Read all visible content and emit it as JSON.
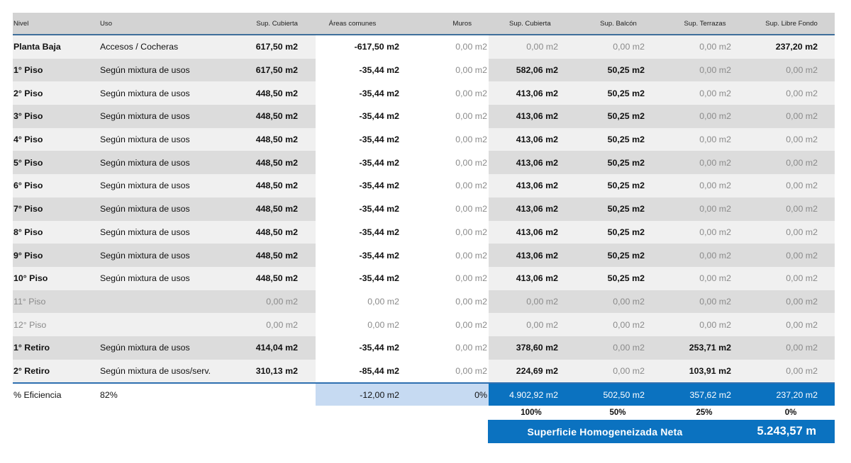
{
  "headers": [
    "Nivel",
    "Uso",
    "Sup. Cubierta",
    "Áreas comunes",
    "Muros",
    "Sup. Cubierta",
    "Sup. Balcón",
    "Sup. Terrazas",
    "Sup. Libre Fondo"
  ],
  "rows": [
    {
      "nivel": "Planta Baja",
      "uso": "Accesos / Cocheras",
      "sup_cubierta": "617,50 m2",
      "areas_comunes": "-617,50 m2",
      "muros": "0,00 m2",
      "sup_cubierta_h": "0,00 m2",
      "balcon": "0,00 m2",
      "terrazas": "0,00 m2",
      "libre_fondo": "237,20 m2"
    },
    {
      "nivel": "1° Piso",
      "uso": "Según mixtura de usos",
      "sup_cubierta": "617,50 m2",
      "areas_comunes": "-35,44 m2",
      "muros": "0,00 m2",
      "sup_cubierta_h": "582,06 m2",
      "balcon": "50,25 m2",
      "terrazas": "0,00 m2",
      "libre_fondo": "0,00 m2"
    },
    {
      "nivel": "2° Piso",
      "uso": "Según mixtura de usos",
      "sup_cubierta": "448,50 m2",
      "areas_comunes": "-35,44 m2",
      "muros": "0,00 m2",
      "sup_cubierta_h": "413,06 m2",
      "balcon": "50,25 m2",
      "terrazas": "0,00 m2",
      "libre_fondo": "0,00 m2"
    },
    {
      "nivel": "3° Piso",
      "uso": "Según mixtura de usos",
      "sup_cubierta": "448,50 m2",
      "areas_comunes": "-35,44 m2",
      "muros": "0,00 m2",
      "sup_cubierta_h": "413,06 m2",
      "balcon": "50,25 m2",
      "terrazas": "0,00 m2",
      "libre_fondo": "0,00 m2"
    },
    {
      "nivel": "4° Piso",
      "uso": "Según mixtura de usos",
      "sup_cubierta": "448,50 m2",
      "areas_comunes": "-35,44 m2",
      "muros": "0,00 m2",
      "sup_cubierta_h": "413,06 m2",
      "balcon": "50,25 m2",
      "terrazas": "0,00 m2",
      "libre_fondo": "0,00 m2"
    },
    {
      "nivel": "5° Piso",
      "uso": "Según mixtura de usos",
      "sup_cubierta": "448,50 m2",
      "areas_comunes": "-35,44 m2",
      "muros": "0,00 m2",
      "sup_cubierta_h": "413,06 m2",
      "balcon": "50,25 m2",
      "terrazas": "0,00 m2",
      "libre_fondo": "0,00 m2"
    },
    {
      "nivel": "6° Piso",
      "uso": "Según mixtura de usos",
      "sup_cubierta": "448,50 m2",
      "areas_comunes": "-35,44 m2",
      "muros": "0,00 m2",
      "sup_cubierta_h": "413,06 m2",
      "balcon": "50,25 m2",
      "terrazas": "0,00 m2",
      "libre_fondo": "0,00 m2"
    },
    {
      "nivel": "7° Piso",
      "uso": "Según mixtura de usos",
      "sup_cubierta": "448,50 m2",
      "areas_comunes": "-35,44 m2",
      "muros": "0,00 m2",
      "sup_cubierta_h": "413,06 m2",
      "balcon": "50,25 m2",
      "terrazas": "0,00 m2",
      "libre_fondo": "0,00 m2"
    },
    {
      "nivel": "8° Piso",
      "uso": "Según mixtura de usos",
      "sup_cubierta": "448,50 m2",
      "areas_comunes": "-35,44 m2",
      "muros": "0,00 m2",
      "sup_cubierta_h": "413,06 m2",
      "balcon": "50,25 m2",
      "terrazas": "0,00 m2",
      "libre_fondo": "0,00 m2"
    },
    {
      "nivel": "9° Piso",
      "uso": "Según mixtura de usos",
      "sup_cubierta": "448,50 m2",
      "areas_comunes": "-35,44 m2",
      "muros": "0,00 m2",
      "sup_cubierta_h": "413,06 m2",
      "balcon": "50,25 m2",
      "terrazas": "0,00 m2",
      "libre_fondo": "0,00 m2"
    },
    {
      "nivel": "10° Piso",
      "uso": "Según mixtura de usos",
      "sup_cubierta": "448,50 m2",
      "areas_comunes": "-35,44 m2",
      "muros": "0,00 m2",
      "sup_cubierta_h": "413,06 m2",
      "balcon": "50,25 m2",
      "terrazas": "0,00 m2",
      "libre_fondo": "0,00 m2"
    },
    {
      "nivel": "11° Piso",
      "uso": "",
      "sup_cubierta": "0,00 m2",
      "areas_comunes": "0,00 m2",
      "muros": "0,00 m2",
      "sup_cubierta_h": "0,00 m2",
      "balcon": "0,00 m2",
      "terrazas": "0,00 m2",
      "libre_fondo": "0,00 m2"
    },
    {
      "nivel": "12° Piso",
      "uso": "",
      "sup_cubierta": "0,00 m2",
      "areas_comunes": "0,00 m2",
      "muros": "0,00 m2",
      "sup_cubierta_h": "0,00 m2",
      "balcon": "0,00 m2",
      "terrazas": "0,00 m2",
      "libre_fondo": "0,00 m2"
    },
    {
      "nivel": "1° Retiro",
      "uso": "Según mixtura de usos",
      "sup_cubierta": "414,04 m2",
      "areas_comunes": "-35,44 m2",
      "muros": "0,00 m2",
      "sup_cubierta_h": "378,60 m2",
      "balcon": "0,00 m2",
      "terrazas": "253,71 m2",
      "libre_fondo": "0,00 m2"
    },
    {
      "nivel": "2° Retiro",
      "uso": "Según mixtura de usos/serv.",
      "sup_cubierta": "310,13 m2",
      "areas_comunes": "-85,44 m2",
      "muros": "0,00 m2",
      "sup_cubierta_h": "224,69 m2",
      "balcon": "0,00 m2",
      "terrazas": "103,91 m2",
      "libre_fondo": "0,00 m2"
    }
  ],
  "eficiencia": {
    "label": "% Eficiencia",
    "value": "82%",
    "areas_comunes": "-12,00 m2",
    "muros": "0%",
    "sup_cubierta_h": "4.902,92 m2",
    "balcon": "502,50 m2",
    "terrazas": "357,62 m2",
    "libre_fondo": "237,20 m2"
  },
  "coeficientes": {
    "sup_cubierta_h": "100%",
    "balcon": "50%",
    "terrazas": "25%",
    "libre_fondo": "0%"
  },
  "total": {
    "label": "Superficie Homogeneizada Neta",
    "value": "5.243,57 m"
  },
  "colors": {
    "accent_blue": "#0b72c0",
    "pale_blue": "#c6daf2",
    "header_gray": "#d3d3d3",
    "border_blue": "#3f6f9b"
  }
}
